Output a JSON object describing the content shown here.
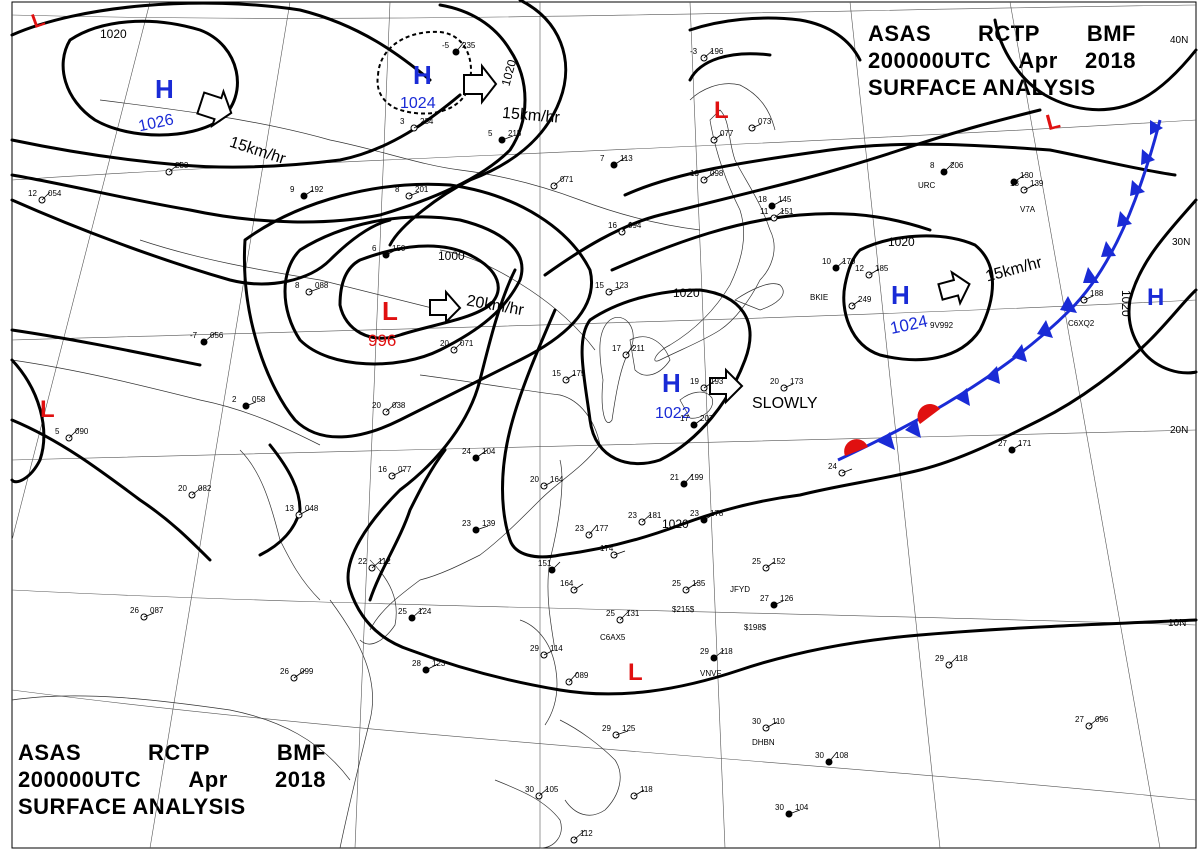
{
  "header": {
    "line1": [
      "ASAS",
      "RCTP",
      "BMF"
    ],
    "line2": [
      "200000UTC",
      "Apr",
      "2018"
    ],
    "line3": "SURFACE ANALYSIS"
  },
  "pressure_centers": [
    {
      "type": "H",
      "value": "1026",
      "motion": "15km/hr"
    },
    {
      "type": "H",
      "value": "1024",
      "motion": "15km/hr"
    },
    {
      "type": "L",
      "value": "996",
      "motion": "20km/hr"
    },
    {
      "type": "H",
      "value": "1022",
      "motion": "SLOWLY"
    },
    {
      "type": "H",
      "value": "1024",
      "motion": "15km/hr"
    },
    {
      "type": "H",
      "value": ""
    },
    {
      "type": "L",
      "value": ""
    },
    {
      "type": "L",
      "value": ""
    },
    {
      "type": "L",
      "value": ""
    },
    {
      "type": "L",
      "value": ""
    }
  ],
  "isobar_labels": [
    "1020",
    "1020",
    "1000",
    "1020",
    "1020",
    "1020",
    "1020"
  ],
  "latitude_labels": [
    "40N",
    "30N",
    "20N",
    "10N"
  ],
  "stations": [
    {
      "t": "-5",
      "p": "235"
    },
    {
      "t": "-3",
      "p": "196"
    },
    {
      "t": "3",
      "p": "234"
    },
    {
      "t": "5",
      "p": "215"
    },
    {
      "t": "",
      "p": "233"
    },
    {
      "t": "12",
      "p": "054"
    },
    {
      "t": "9",
      "p": "192"
    },
    {
      "t": "8",
      "p": "201"
    },
    {
      "t": "",
      "p": "071"
    },
    {
      "t": "7",
      "p": "113"
    },
    {
      "t": "",
      "p": "077"
    },
    {
      "t": "",
      "p": "073"
    },
    {
      "t": "8",
      "p": "206"
    },
    {
      "t": "13",
      "p": "098"
    },
    {
      "t": "13",
      "p": "139"
    },
    {
      "t": "6",
      "p": "150"
    },
    {
      "t": "16",
      "p": "094"
    },
    {
      "t": "11",
      "p": "151"
    },
    {
      "t": "18",
      "p": "145"
    },
    {
      "t": "15",
      "p": "123"
    },
    {
      "t": "17",
      "p": "211"
    },
    {
      "t": "10",
      "p": "170"
    },
    {
      "t": "12",
      "p": "185"
    },
    {
      "t": "8",
      "p": "088"
    },
    {
      "t": "-7",
      "p": "056"
    },
    {
      "t": "20",
      "p": "071"
    },
    {
      "t": "15",
      "p": "175"
    },
    {
      "t": "2",
      "p": "058"
    },
    {
      "t": "20",
      "p": "038"
    },
    {
      "t": "19",
      "p": "193"
    },
    {
      "t": "17",
      "p": "207"
    },
    {
      "t": "20",
      "p": "173"
    },
    {
      "t": "5",
      "p": "090"
    },
    {
      "t": "24",
      "p": "104"
    },
    {
      "t": "16",
      "p": "077"
    },
    {
      "t": "20",
      "p": "164"
    },
    {
      "t": "21",
      "p": "199"
    },
    {
      "t": "20",
      "p": "082"
    },
    {
      "t": "13",
      "p": "048"
    },
    {
      "t": "23",
      "p": "139"
    },
    {
      "t": "23",
      "p": "177"
    },
    {
      "t": "23",
      "p": "181"
    },
    {
      "t": "23",
      "p": "178"
    },
    {
      "t": "174",
      "p": ""
    },
    {
      "t": "22",
      "p": "112"
    },
    {
      "t": "151",
      "p": ""
    },
    {
      "t": "164",
      "p": ""
    },
    {
      "t": "26",
      "p": "087"
    },
    {
      "t": "25",
      "p": "124"
    },
    {
      "t": "25",
      "p": "135"
    },
    {
      "t": "25",
      "p": "152"
    },
    {
      "t": "27",
      "p": "126"
    },
    {
      "t": "25",
      "p": "131"
    },
    {
      "t": "26",
      "p": "099"
    },
    {
      "t": "28",
      "p": "123"
    },
    {
      "t": "29",
      "p": "114"
    },
    {
      "t": "",
      "p": "089"
    },
    {
      "t": "29",
      "p": "118"
    },
    {
      "t": "30",
      "p": "110"
    },
    {
      "t": "29",
      "p": "125"
    },
    {
      "t": "30",
      "p": "108"
    },
    {
      "t": "30",
      "p": "105"
    },
    {
      "t": "",
      "p": "118"
    },
    {
      "t": "30",
      "p": "104"
    },
    {
      "t": "27",
      "p": "096"
    },
    {
      "t": "29",
      "p": "118"
    },
    {
      "t": "27",
      "p": "171"
    },
    {
      "t": "24",
      "p": ""
    },
    {
      "t": "",
      "p": "112"
    },
    {
      "t": "",
      "p": "130"
    },
    {
      "t": "",
      "p": "249"
    },
    {
      "t": "",
      "p": "188"
    }
  ],
  "station_codes": [
    "BKIE",
    "JFYD",
    "$215$",
    "$198$",
    "C6AX5",
    "VNVF",
    "DHBN",
    "9V992",
    "C6XQ2",
    "V7A",
    "URC"
  ],
  "colors": {
    "high": "#1a2bd6",
    "low": "#e01010",
    "front": "#1a2bd6",
    "warm": "#e01010"
  }
}
